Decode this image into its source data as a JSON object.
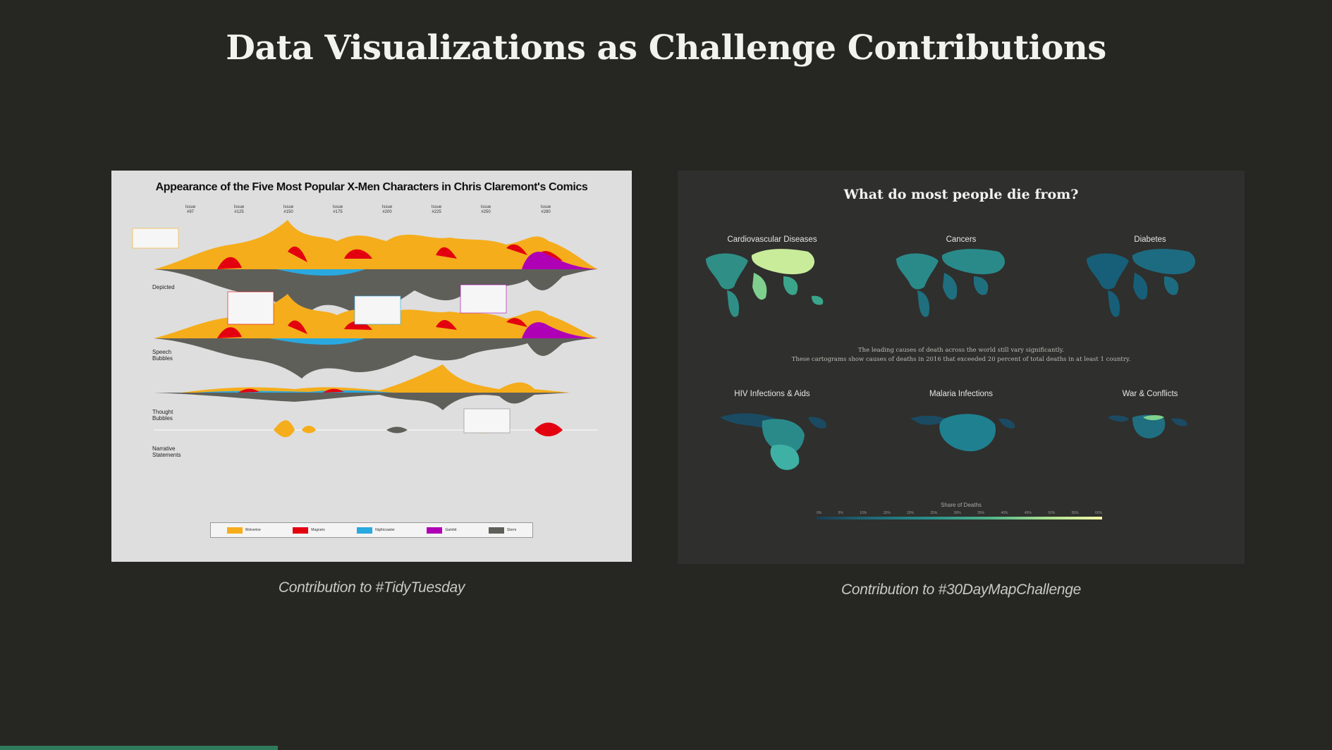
{
  "slide": {
    "title": "Data Visualizations as Challenge Contributions"
  },
  "left_card": {
    "caption": "Contribution to #TidyTuesday",
    "chart_title": "Appearance of the Five Most Popular X-Men Characters in Chris Claremont's Comics",
    "issues": [
      "Issue\n#97",
      "Issue\n#125",
      "Issue\n#150",
      "Issue\n#175",
      "Issue\n#200",
      "Issue\n#225",
      "Issue\n#250",
      "Issue\n#280"
    ],
    "rows": [
      "Depicted",
      "Speech\nBubbles",
      "Thought\nBubbles",
      "Narrative\nStatements"
    ],
    "legend": [
      {
        "label": "Wolverine",
        "color": "#f5ad1b"
      },
      {
        "label": "Magneto",
        "color": "#e3000f"
      },
      {
        "label": "Nightcrawler",
        "color": "#29a9e0"
      },
      {
        "label": "Gambit",
        "color": "#b000b5"
      },
      {
        "label": "Storm",
        "color": "#5f5f5a"
      }
    ]
  },
  "right_card": {
    "caption": "Contribution to #30DayMapChallenge",
    "title": "What do most people die from?",
    "maps_row1": [
      "Cardiovascular Diseases",
      "Cancers",
      "Diabetes"
    ],
    "maps_row2": [
      "HIV Infections & Aids",
      "Malaria Infections",
      "War & Conflicts"
    ],
    "subtitle_line1": "The leading causes of death across the world still vary significantly.",
    "subtitle_line2": "These cartograms show causes of deaths in 2016 that exceeded 20 percent of total deaths in at least 1 country.",
    "scale_title": "Share of Deaths",
    "scale_ticks": [
      "0%",
      "5%",
      "10%",
      "15%",
      "20%",
      "25%",
      "30%",
      "35%",
      "40%",
      "45%",
      "50%",
      "55%",
      "60%"
    ]
  }
}
